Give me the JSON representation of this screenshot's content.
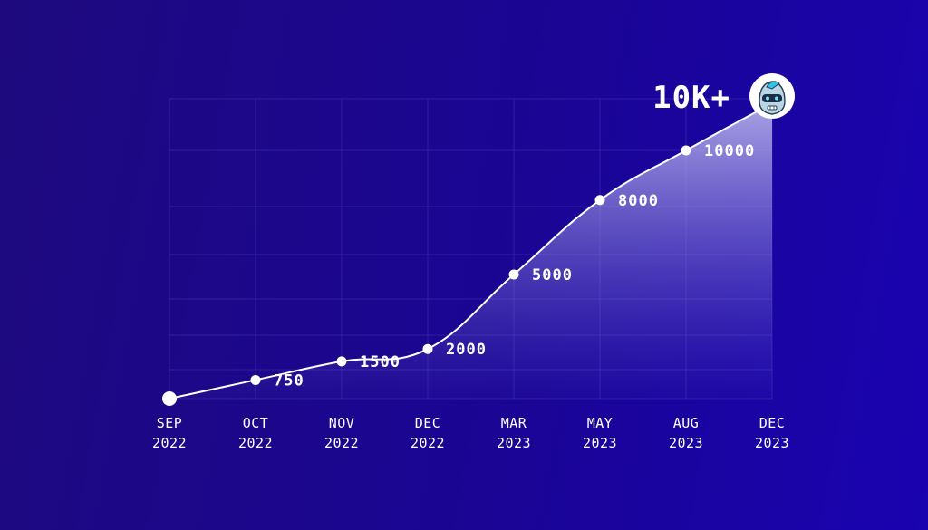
{
  "headline": "10K+",
  "logo_icon": "robot-mascot-icon",
  "colors": {
    "background": "#1c0890",
    "line": "#ffffff",
    "grid": "#3f2fb0",
    "area_top": "#b3aee6"
  },
  "chart_data": {
    "type": "area",
    "title": "",
    "xlabel": "",
    "ylabel": "",
    "x": [
      "SEP 2022",
      "OCT 2022",
      "NOV 2022",
      "DEC 2022",
      "MAR 2023",
      "MAY 2023",
      "AUG 2023",
      "DEC 2023"
    ],
    "tick_labels": [
      {
        "month": "SEP",
        "year": "2022"
      },
      {
        "month": "OCT",
        "year": "2022"
      },
      {
        "month": "NOV",
        "year": "2022"
      },
      {
        "month": "DEC",
        "year": "2022"
      },
      {
        "month": "MAR",
        "year": "2023"
      },
      {
        "month": "MAY",
        "year": "2023"
      },
      {
        "month": "AUG",
        "year": "2023"
      },
      {
        "month": "DEC",
        "year": "2023"
      }
    ],
    "series": [
      {
        "values": [
          0,
          750,
          1500,
          2000,
          5000,
          8000,
          10000,
          10000
        ],
        "data_labels": [
          "",
          "750",
          "1500",
          "2000",
          "5000",
          "8000",
          "10000",
          ""
        ]
      }
    ],
    "y_axis_visible": false,
    "grid": true,
    "legend": "none"
  }
}
